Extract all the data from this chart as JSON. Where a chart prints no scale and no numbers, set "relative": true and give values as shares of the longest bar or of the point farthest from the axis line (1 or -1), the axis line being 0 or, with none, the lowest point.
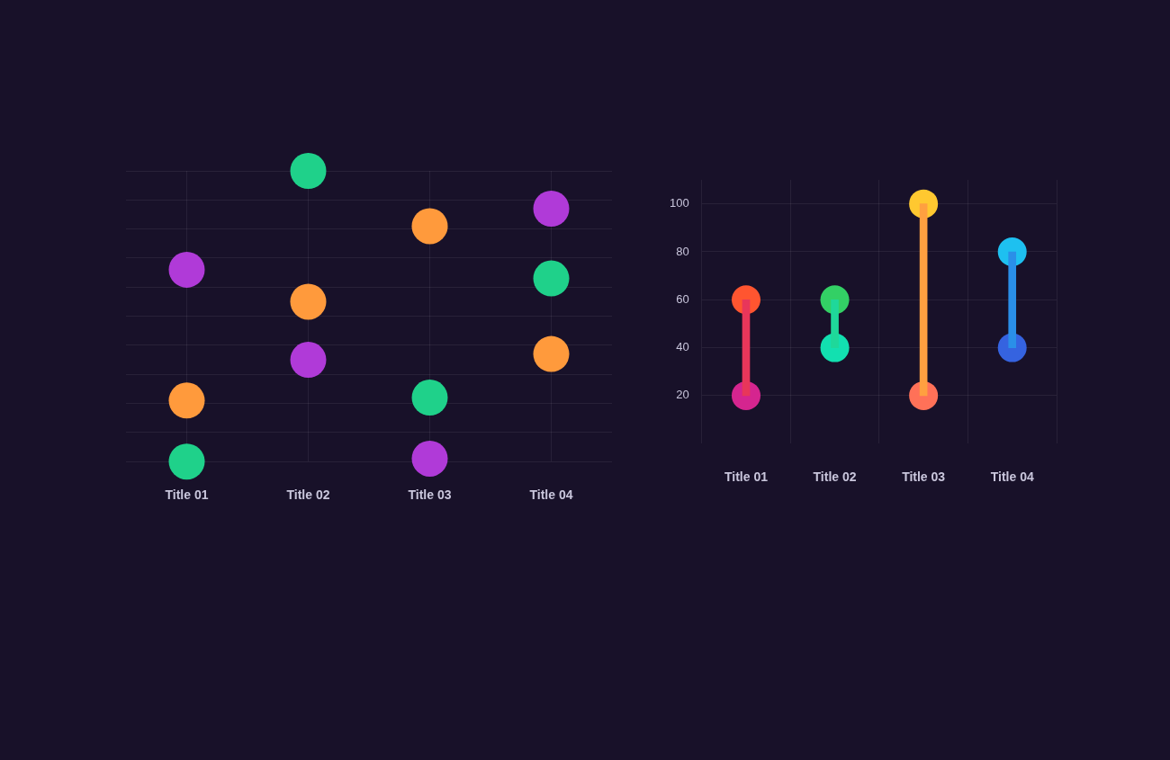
{
  "chart_data": [
    {
      "type": "scatter",
      "relative": true,
      "categories": [
        "Title 01",
        "Title 02",
        "Title 03",
        "Title 04"
      ],
      "grid": true,
      "legend": false,
      "marker": "circle",
      "series": [
        {
          "color": "#b03ad8",
          "values": [
            0.66,
            0.35,
            0.01,
            0.87
          ]
        },
        {
          "color": "#ff9a3c",
          "values": [
            0.21,
            0.55,
            0.81,
            0.37
          ]
        },
        {
          "color": "#1fd18a",
          "values": [
            0,
            1,
            0.22,
            0.63
          ]
        }
      ]
    },
    {
      "type": "bar",
      "categories": [
        "Title 01",
        "Title 02",
        "Title 03",
        "Title 04"
      ],
      "ylim": [
        0,
        110
      ],
      "yticks": [
        20,
        40,
        60,
        80,
        100
      ],
      "grid": true,
      "legend": false,
      "marker": "circle",
      "series": [
        {
          "type": "bar",
          "base": [
            20,
            40,
            20,
            40
          ],
          "values": [
            40,
            20,
            80,
            40
          ],
          "colors": [
            "#e8365a",
            "#1fd89a",
            "#ffa040",
            "#2a8fe8"
          ]
        },
        {
          "type": "scatter",
          "values": [
            20,
            40,
            20,
            40
          ],
          "colors": [
            "#d5258f",
            "#12e0b0",
            "#ff7158",
            "#3563e0"
          ]
        },
        {
          "type": "scatter",
          "values": [
            60,
            60,
            100,
            80
          ],
          "colors": [
            "#ff5530",
            "#33d065",
            "#ffc830",
            "#1ec0f0"
          ]
        }
      ]
    }
  ]
}
